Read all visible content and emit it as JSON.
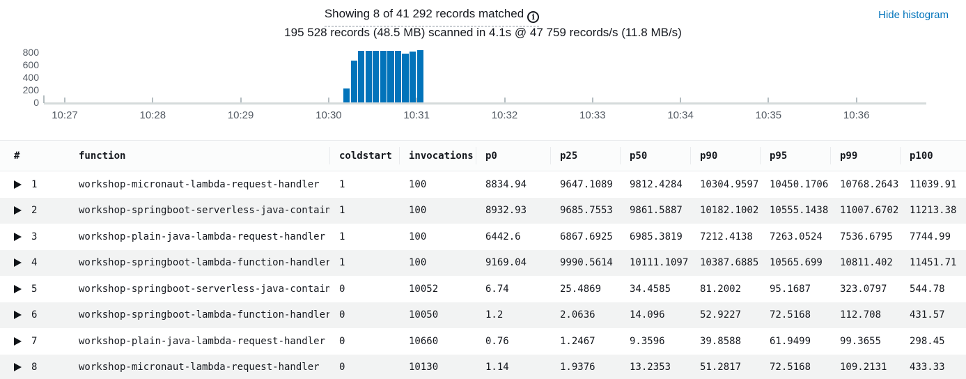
{
  "header": {
    "matched_text": "Showing 8 of 41 292 records matched",
    "info_icon_glyph": "i",
    "scan_summary": "195 528 records (48.5 MB) scanned in 4.1s @ 47 759 records/s (11.8 MB/s)",
    "hide_histogram_label": "Hide histogram"
  },
  "colors": {
    "link_blue": "#0073bb",
    "bar_blue": "#0273ba",
    "row_stripe": "#f2f3f3"
  },
  "chart_data": {
    "type": "bar",
    "title": "",
    "xlabel": "",
    "ylabel": "",
    "x_ticks": [
      "10:27",
      "10:28",
      "10:29",
      "10:30",
      "10:31",
      "10:32",
      "10:33",
      "10:34",
      "10:35",
      "10:36"
    ],
    "y_ticks": [
      800,
      600,
      400,
      200,
      0
    ],
    "ylim": [
      0,
      880
    ],
    "grid": false,
    "legend": "none",
    "bar_bucket_seconds": 5,
    "first_bar_time": "10:30:10",
    "last_bar_time": "10:31:00",
    "values": [
      220,
      655,
      810,
      810,
      810,
      810,
      810,
      810,
      770,
      795,
      825
    ],
    "bar_color": "#0273ba"
  },
  "table": {
    "columns": [
      "#",
      "function",
      "coldstart",
      "invocations",
      "p0",
      "p25",
      "p50",
      "p90",
      "p95",
      "p99",
      "p100"
    ],
    "rows": [
      [
        "1",
        "workshop-micronaut-lambda-request-handler",
        "1",
        "100",
        "8834.94",
        "9647.1089",
        "9812.4284",
        "10304.9597",
        "10450.1706",
        "10768.2643",
        "11039.91"
      ],
      [
        "2",
        "workshop-springboot-serverless-java-contain…",
        "1",
        "100",
        "8932.93",
        "9685.7553",
        "9861.5887",
        "10182.1002",
        "10555.1438",
        "11007.6702",
        "11213.38"
      ],
      [
        "3",
        "workshop-plain-java-lambda-request-handler",
        "1",
        "100",
        "6442.6",
        "6867.6925",
        "6985.3819",
        "7212.4138",
        "7263.0524",
        "7536.6795",
        "7744.99"
      ],
      [
        "4",
        "workshop-springboot-lambda-function-handler",
        "1",
        "100",
        "9169.04",
        "9990.5614",
        "10111.1097",
        "10387.6885",
        "10565.699",
        "10811.402",
        "11451.71"
      ],
      [
        "5",
        "workshop-springboot-serverless-java-contain…",
        "0",
        "10052",
        "6.74",
        "25.4869",
        "34.4585",
        "81.2002",
        "95.1687",
        "323.0797",
        "544.78"
      ],
      [
        "6",
        "workshop-springboot-lambda-function-handler",
        "0",
        "10050",
        "1.2",
        "2.0636",
        "14.096",
        "52.9227",
        "72.5168",
        "112.708",
        "431.57"
      ],
      [
        "7",
        "workshop-plain-java-lambda-request-handler",
        "0",
        "10660",
        "0.76",
        "1.2467",
        "9.3596",
        "39.8588",
        "61.9499",
        "99.3655",
        "298.45"
      ],
      [
        "8",
        "workshop-micronaut-lambda-request-handler",
        "0",
        "10130",
        "1.14",
        "1.9376",
        "13.2353",
        "51.2817",
        "72.5168",
        "109.2131",
        "433.33"
      ]
    ]
  }
}
